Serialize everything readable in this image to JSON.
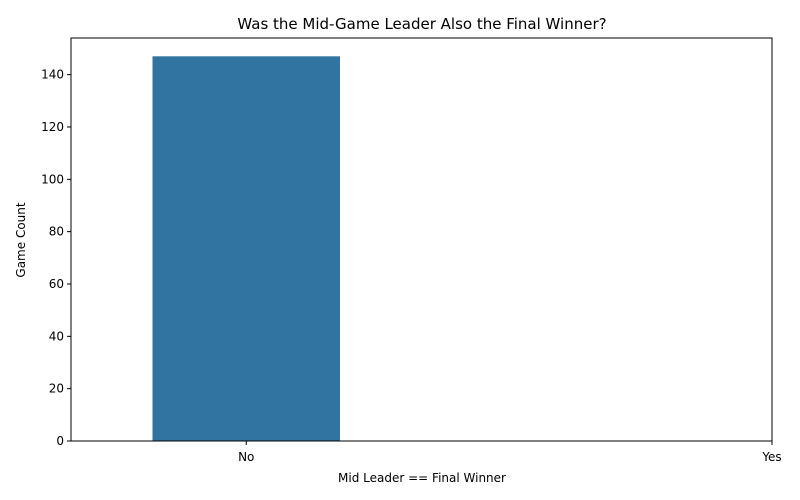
{
  "chart_data": {
    "type": "bar",
    "title": "Was the Mid-Game Leader Also the Final Winner?",
    "xlabel": "Mid Leader == Final Winner",
    "ylabel": "Game Count",
    "categories": [
      "No",
      "Yes"
    ],
    "values": [
      147,
      0
    ],
    "ylim": [
      0,
      154
    ],
    "yticks": [
      0,
      20,
      40,
      60,
      80,
      100,
      120,
      140
    ],
    "bar_color": "#3274a1",
    "grid": false,
    "legend": "none"
  }
}
